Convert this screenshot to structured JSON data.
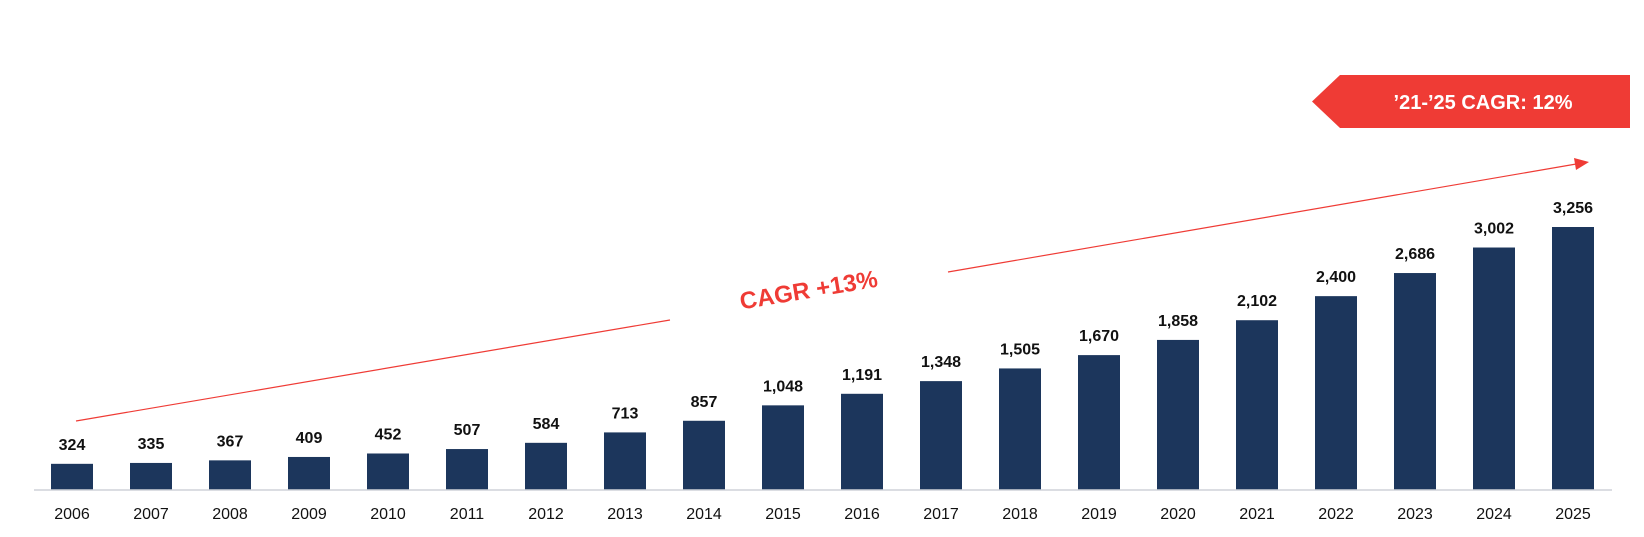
{
  "chart_data": {
    "type": "bar",
    "categories": [
      "2006",
      "2007",
      "2008",
      "2009",
      "2010",
      "2011",
      "2012",
      "2013",
      "2014",
      "2015",
      "2016",
      "2017",
      "2018",
      "2019",
      "2020",
      "2021",
      "2022",
      "2023",
      "2024",
      "2025"
    ],
    "values": [
      324,
      335,
      367,
      409,
      452,
      507,
      584,
      713,
      857,
      1048,
      1191,
      1348,
      1505,
      1670,
      1858,
      2102,
      2400,
      2686,
      3002,
      3256
    ],
    "value_labels": [
      "324",
      "335",
      "367",
      "409",
      "452",
      "507",
      "584",
      "713",
      "857",
      "1,048",
      "1,191",
      "1,348",
      "1,505",
      "1,670",
      "1,858",
      "2,102",
      "2,400",
      "2,686",
      "3,002",
      "3,256"
    ],
    "title": "",
    "xlabel": "",
    "ylabel": "",
    "ylim": [
      0,
      3300
    ],
    "grid": false,
    "legend": "none",
    "annotations": {
      "cagr_overall": "CAGR +13%",
      "cagr_recent": "’21-’25 CAGR: 12%"
    },
    "colors": {
      "bar": "#1c365c",
      "accent": "#ef3b35",
      "axis": "#cfd2d8"
    }
  }
}
